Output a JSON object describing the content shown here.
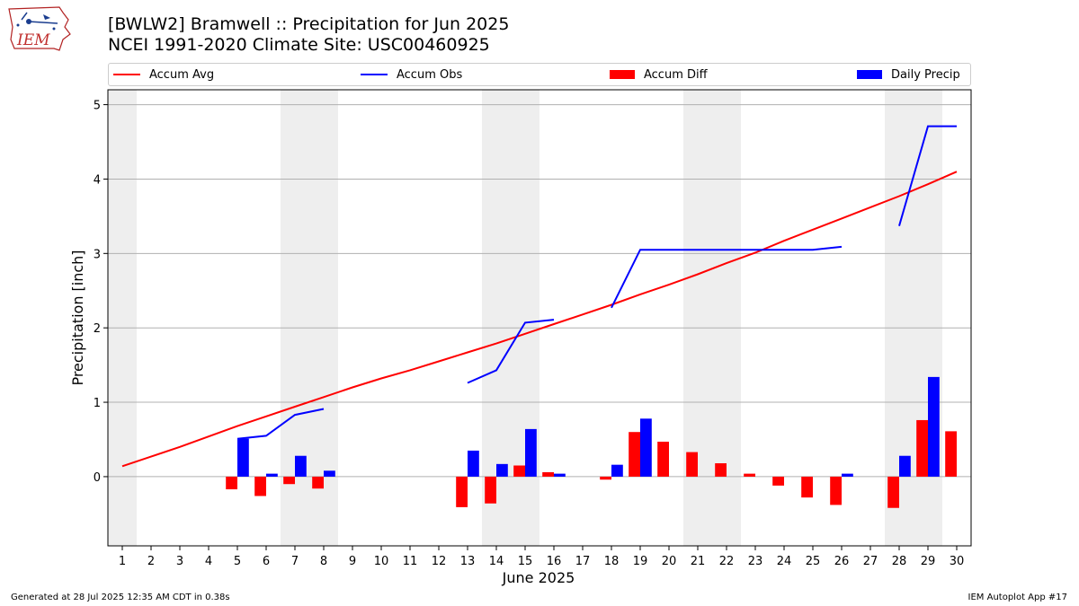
{
  "header": {
    "title_line1": "[BWLW2] Bramwell :: Precipitation for Jun 2025",
    "title_line2": "NCEI 1991-2020 Climate Site: USC00460925",
    "logo_text": "IEM"
  },
  "footer": {
    "left": "Generated at 28 Jul 2025 12:35 AM CDT in 0.38s",
    "right": "IEM Autoplot App #17"
  },
  "legend": [
    {
      "label": "Accum Avg",
      "kind": "line",
      "color": "#ff0000"
    },
    {
      "label": "Accum Obs",
      "kind": "line",
      "color": "#0000ff"
    },
    {
      "label": "Accum Diff",
      "kind": "bar",
      "color": "#ff0000"
    },
    {
      "label": "Daily Precip",
      "kind": "bar",
      "color": "#0000ff"
    }
  ],
  "chart_data": {
    "type": "bar",
    "xlabel": "June 2025",
    "ylabel": "Precipitation [inch]",
    "x": [
      1,
      2,
      3,
      4,
      5,
      6,
      7,
      8,
      9,
      10,
      11,
      12,
      13,
      14,
      15,
      16,
      17,
      18,
      19,
      20,
      21,
      22,
      23,
      24,
      25,
      26,
      27,
      28,
      29,
      30
    ],
    "xlim": [
      0.5,
      30.5
    ],
    "ylim": [
      -0.93,
      5.2
    ],
    "yticks": [
      0,
      1,
      2,
      3,
      4,
      5
    ],
    "grid": "horizontal",
    "weekend_shading": [
      [
        0.5,
        1.5
      ],
      [
        6.5,
        8.5
      ],
      [
        13.5,
        15.5
      ],
      [
        20.5,
        22.5
      ],
      [
        27.5,
        29.5
      ]
    ],
    "colors": {
      "avg": "#ff0000",
      "obs": "#0000ff",
      "diff": "#ff0000",
      "daily": "#0000ff",
      "shade": "#eeeeee",
      "grid": "#b0b0b0"
    },
    "series": [
      {
        "name": "Accum Avg",
        "type": "line",
        "values": [
          0.14,
          0.27,
          0.4,
          0.54,
          0.68,
          0.81,
          0.94,
          1.07,
          1.2,
          1.32,
          1.43,
          1.55,
          1.67,
          1.79,
          1.92,
          2.05,
          2.18,
          2.31,
          2.45,
          2.58,
          2.72,
          2.87,
          3.01,
          3.17,
          3.32,
          3.47,
          3.62,
          3.77,
          3.93,
          4.1
        ]
      },
      {
        "name": "Accum Obs",
        "type": "line",
        "values": [
          null,
          null,
          null,
          null,
          0.51,
          0.55,
          0.83,
          0.91,
          null,
          null,
          null,
          null,
          1.26,
          1.43,
          2.07,
          2.11,
          null,
          2.27,
          3.05,
          3.05,
          3.05,
          3.05,
          3.05,
          3.05,
          3.05,
          3.09,
          null,
          3.37,
          4.71,
          4.71
        ]
      },
      {
        "name": "Accum Diff",
        "type": "bar",
        "values": [
          null,
          null,
          null,
          null,
          -0.17,
          -0.26,
          -0.1,
          -0.16,
          null,
          null,
          null,
          null,
          -0.41,
          -0.36,
          0.15,
          0.06,
          null,
          -0.04,
          0.6,
          0.47,
          0.33,
          0.18,
          0.04,
          -0.12,
          -0.28,
          -0.38,
          null,
          -0.42,
          0.76,
          0.61
        ]
      },
      {
        "name": "Daily Precip",
        "type": "bar",
        "values": [
          null,
          null,
          null,
          null,
          0.51,
          0.04,
          0.28,
          0.08,
          null,
          null,
          null,
          null,
          0.35,
          0.17,
          0.64,
          0.04,
          null,
          0.16,
          0.78,
          null,
          null,
          null,
          null,
          null,
          null,
          0.04,
          null,
          0.28,
          1.34,
          null
        ]
      }
    ]
  }
}
